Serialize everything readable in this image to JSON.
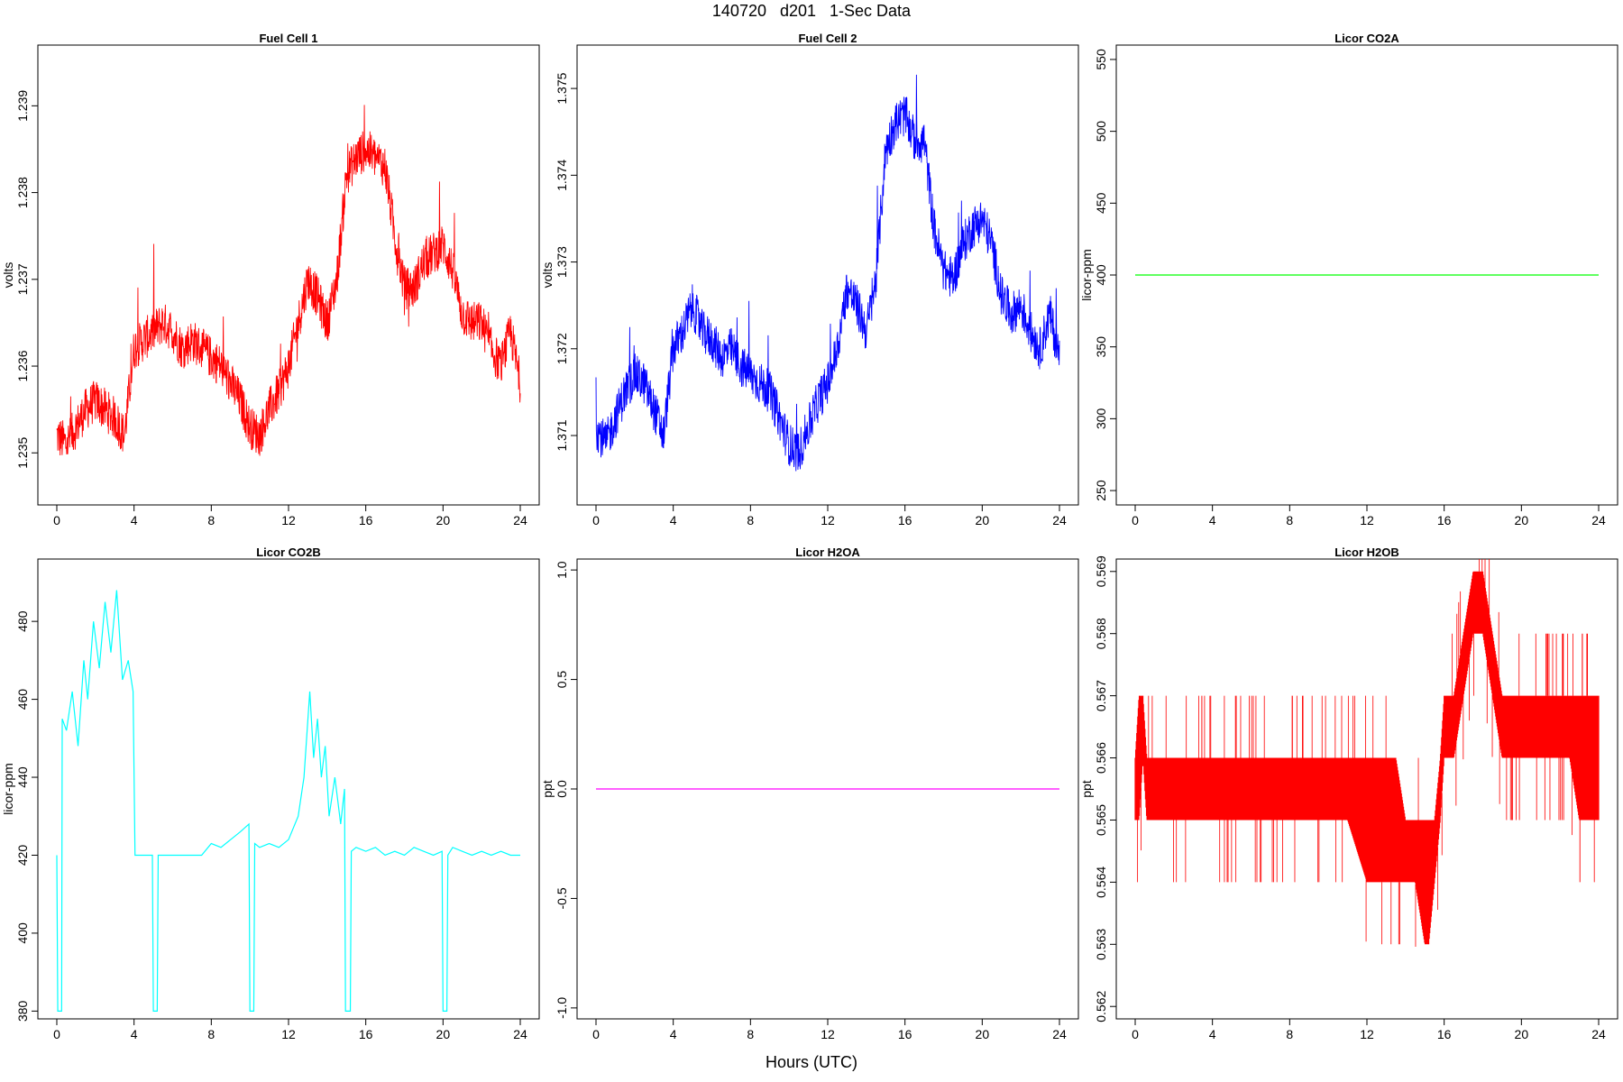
{
  "page": {
    "title": "140720   d201   1-Sec Data",
    "x_caption": "Hours (UTC)"
  },
  "chart_data": [
    {
      "type": "line",
      "title": "Fuel Cell 1",
      "ylabel": "volts",
      "xlabel": "",
      "xlim": [
        0,
        24
      ],
      "ylim": [
        1.2344,
        1.2397
      ],
      "xticks": [
        0,
        4,
        8,
        12,
        16,
        20,
        24
      ],
      "yticks": [
        1.235,
        1.236,
        1.237,
        1.238,
        1.239
      ],
      "ytick_labels": [
        "1.235",
        "1.236",
        "1.237",
        "1.238",
        "1.239"
      ],
      "color": "#ff0000",
      "style": "noisy",
      "noise": 0.00025,
      "spikes": 0.0012,
      "series": [
        {
          "x": [
            0,
            0.5,
            1,
            1.5,
            2,
            2.5,
            3,
            3.5,
            4,
            4.5,
            5,
            5.5,
            6,
            6.5,
            7,
            7.5,
            8,
            8.5,
            9,
            9.5,
            10,
            10.5,
            11,
            11.5,
            12,
            12.5,
            13,
            13.5,
            14,
            14.5,
            15,
            15.5,
            16,
            16.5,
            17,
            17.5,
            18,
            18.5,
            19,
            19.5,
            20,
            20.5,
            21,
            21.5,
            22,
            22.5,
            23,
            23.5,
            24
          ],
          "y": [
            1.2352,
            1.2351,
            1.2353,
            1.2355,
            1.2356,
            1.2355,
            1.2354,
            1.2352,
            1.2362,
            1.2363,
            1.2364,
            1.2365,
            1.2364,
            1.2362,
            1.2363,
            1.2362,
            1.2361,
            1.236,
            1.2358,
            1.2356,
            1.2353,
            1.2352,
            1.2355,
            1.2357,
            1.236,
            1.2365,
            1.237,
            1.2368,
            1.2365,
            1.237,
            1.2382,
            1.2384,
            1.2385,
            1.2384,
            1.2383,
            1.2375,
            1.2369,
            1.2369,
            1.2372,
            1.2373,
            1.2374,
            1.2371,
            1.2366,
            1.2365,
            1.2365,
            1.2362,
            1.236,
            1.2364,
            1.2358
          ]
        }
      ]
    },
    {
      "type": "line",
      "title": "Fuel Cell 2",
      "ylabel": "volts",
      "xlabel": "",
      "xlim": [
        0,
        24
      ],
      "ylim": [
        1.3702,
        1.3755
      ],
      "xticks": [
        0,
        4,
        8,
        12,
        16,
        20,
        24
      ],
      "yticks": [
        1.371,
        1.372,
        1.373,
        1.374,
        1.375
      ],
      "ytick_labels": [
        "1.371",
        "1.372",
        "1.373",
        "1.374",
        "1.375"
      ],
      "color": "#0000ff",
      "style": "noisy",
      "noise": 0.00025,
      "spikes": 0.0012,
      "series": [
        {
          "x": [
            0,
            0.5,
            1,
            1.5,
            2,
            2.5,
            3,
            3.5,
            4,
            4.5,
            5,
            5.5,
            6,
            6.5,
            7,
            7.5,
            8,
            8.5,
            9,
            9.5,
            10,
            10.5,
            11,
            11.5,
            12,
            12.5,
            13,
            13.5,
            14,
            14.5,
            15,
            15.5,
            16,
            16.5,
            17,
            17.5,
            18,
            18.5,
            19,
            19.5,
            20,
            20.5,
            21,
            21.5,
            22,
            22.5,
            23,
            23.5,
            24
          ],
          "y": [
            1.3711,
            1.3709,
            1.3712,
            1.3715,
            1.3717,
            1.3716,
            1.3713,
            1.371,
            1.372,
            1.3722,
            1.3725,
            1.3722,
            1.3721,
            1.3719,
            1.372,
            1.3718,
            1.3717,
            1.3716,
            1.3715,
            1.3712,
            1.3709,
            1.3708,
            1.3711,
            1.3714,
            1.3716,
            1.372,
            1.3727,
            1.3725,
            1.3722,
            1.3728,
            1.3743,
            1.3746,
            1.3747,
            1.3744,
            1.3744,
            1.3734,
            1.3729,
            1.3728,
            1.3732,
            1.3734,
            1.3735,
            1.3732,
            1.3726,
            1.3724,
            1.3725,
            1.3722,
            1.372,
            1.3724,
            1.3719
          ]
        }
      ]
    },
    {
      "type": "line",
      "title": "Licor CO2A",
      "ylabel": "licor-ppm",
      "xlabel": "",
      "xlim": [
        0,
        24
      ],
      "ylim": [
        240,
        560
      ],
      "xticks": [
        0,
        4,
        8,
        12,
        16,
        20,
        24
      ],
      "yticks": [
        250,
        300,
        350,
        400,
        450,
        500,
        550
      ],
      "ytick_labels": [
        "250",
        "300",
        "350",
        "400",
        "450",
        "500",
        "550"
      ],
      "color": "#00ff00",
      "style": "plain",
      "series": [
        {
          "x": [
            0,
            24
          ],
          "y": [
            400,
            400
          ]
        }
      ]
    },
    {
      "type": "line",
      "title": "Licor CO2B",
      "ylabel": "licor-ppm",
      "xlabel": "",
      "xlim": [
        0,
        24
      ],
      "ylim": [
        378,
        496
      ],
      "xticks": [
        0,
        4,
        8,
        12,
        16,
        20,
        24
      ],
      "yticks": [
        380,
        400,
        420,
        440,
        460,
        480
      ],
      "ytick_labels": [
        "380",
        "400",
        "420",
        "440",
        "460",
        "480"
      ],
      "color": "#00ffff",
      "style": "plain",
      "series": [
        {
          "x": [
            0,
            0.05,
            0.08,
            0.25,
            0.28,
            0.5,
            0.8,
            1.1,
            1.4,
            1.6,
            1.9,
            2.2,
            2.5,
            2.8,
            3.1,
            3.4,
            3.7,
            3.95,
            4.05,
            4.5,
            4.95,
            5.0,
            5.2,
            5.25,
            5.5,
            6.0,
            6.5,
            7.0,
            7.5,
            8.0,
            8.5,
            9.0,
            9.5,
            9.95,
            10.0,
            10.2,
            10.25,
            10.5,
            11.0,
            11.5,
            12.0,
            12.5,
            12.8,
            13.1,
            13.3,
            13.5,
            13.7,
            13.9,
            14.1,
            14.4,
            14.7,
            14.9,
            14.95,
            15.2,
            15.25,
            15.5,
            16.0,
            16.5,
            17.0,
            17.5,
            18.0,
            18.5,
            19.0,
            19.5,
            19.95,
            20.0,
            20.2,
            20.25,
            20.5,
            21.0,
            21.5,
            22.0,
            22.5,
            23.0,
            23.5,
            24.0
          ],
          "y": [
            420,
            380,
            380,
            380,
            455,
            452,
            462,
            448,
            470,
            460,
            480,
            468,
            485,
            472,
            488,
            465,
            470,
            462,
            420,
            420,
            420,
            380,
            380,
            420,
            420,
            420,
            420,
            420,
            420,
            423,
            422,
            424,
            426,
            428,
            380,
            380,
            423,
            422,
            423,
            422,
            424,
            430,
            440,
            462,
            445,
            455,
            440,
            448,
            430,
            440,
            428,
            437,
            380,
            380,
            421,
            422,
            421,
            422,
            420,
            421,
            420,
            422,
            421,
            420,
            421,
            380,
            380,
            420,
            422,
            421,
            420,
            421,
            420,
            421,
            420,
            420
          ]
        }
      ]
    },
    {
      "type": "line",
      "title": "Licor H2OA",
      "ylabel": "ppt",
      "xlabel": "",
      "xlim": [
        0,
        24
      ],
      "ylim": [
        -1.05,
        1.05
      ],
      "xticks": [
        0,
        4,
        8,
        12,
        16,
        20,
        24
      ],
      "yticks": [
        -1.0,
        -0.5,
        0.0,
        0.5,
        1.0
      ],
      "ytick_labels": [
        "-1.0",
        "-0.5",
        "0.0",
        "0.5",
        "1.0"
      ],
      "color": "#ff00ff",
      "style": "plain",
      "series": [
        {
          "x": [
            0,
            24
          ],
          "y": [
            0,
            0
          ]
        }
      ]
    },
    {
      "type": "line",
      "title": "Licor H2OB",
      "ylabel": "ppt",
      "xlabel": "",
      "xlim": [
        0,
        24
      ],
      "ylim": [
        0.5618,
        0.5692
      ],
      "xticks": [
        0,
        4,
        8,
        12,
        16,
        20,
        24
      ],
      "yticks": [
        0.562,
        0.563,
        0.564,
        0.565,
        0.566,
        0.567,
        0.568,
        0.569
      ],
      "ytick_labels": [
        "0.562",
        "0.563",
        "0.564",
        "0.565",
        "0.566",
        "0.567",
        "0.568",
        "0.569"
      ],
      "color": "#ff0000",
      "style": "bands",
      "series": [
        {
          "x": [
            0,
            0.2,
            0.4,
            0.6,
            0.8,
            1.0,
            2.0,
            3.0,
            4.0,
            5.0,
            6.0,
            7.0,
            8.0,
            9.0,
            10.0,
            11.0,
            12.0,
            12.5,
            13.0,
            13.5,
            14.0,
            14.5,
            15.0,
            15.2,
            15.5,
            15.8,
            16.0,
            16.5,
            17.0,
            17.5,
            18.0,
            18.5,
            19.0,
            19.5,
            20.0,
            20.5,
            21.0,
            21.5,
            22.0,
            22.5,
            23.0,
            23.5,
            24.0
          ],
          "low": [
            0.565,
            0.565,
            0.566,
            0.565,
            0.565,
            0.565,
            0.565,
            0.565,
            0.565,
            0.565,
            0.565,
            0.565,
            0.565,
            0.565,
            0.565,
            0.565,
            0.564,
            0.564,
            0.564,
            0.564,
            0.564,
            0.564,
            0.563,
            0.563,
            0.564,
            0.565,
            0.566,
            0.566,
            0.567,
            0.568,
            0.568,
            0.567,
            0.566,
            0.566,
            0.566,
            0.566,
            0.566,
            0.566,
            0.566,
            0.566,
            0.565,
            0.565,
            0.565
          ],
          "high": [
            0.566,
            0.567,
            0.567,
            0.566,
            0.566,
            0.566,
            0.566,
            0.566,
            0.566,
            0.566,
            0.566,
            0.566,
            0.566,
            0.566,
            0.566,
            0.566,
            0.566,
            0.566,
            0.566,
            0.566,
            0.565,
            0.565,
            0.565,
            0.565,
            0.565,
            0.566,
            0.567,
            0.567,
            0.568,
            0.569,
            0.569,
            0.568,
            0.567,
            0.567,
            0.567,
            0.567,
            0.567,
            0.567,
            0.567,
            0.567,
            0.567,
            0.567,
            0.567
          ]
        }
      ]
    }
  ]
}
